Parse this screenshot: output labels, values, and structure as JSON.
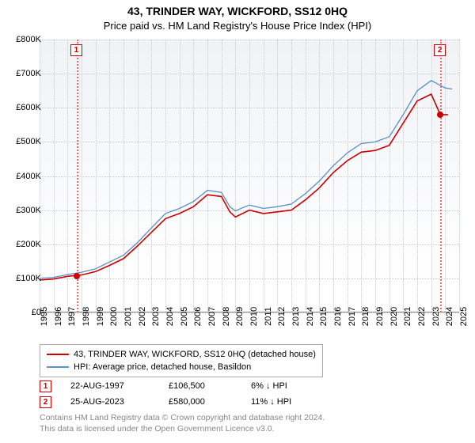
{
  "title": "43, TRINDER WAY, WICKFORD, SS12 0HQ",
  "subtitle": "Price paid vs. HM Land Registry's House Price Index (HPI)",
  "chart": {
    "type": "line",
    "background_top": "#f0f2f6",
    "background_bottom": "#ffffff",
    "grid_color": "#c8c8c8",
    "x_years": [
      1995,
      1996,
      1997,
      1998,
      1999,
      2000,
      2001,
      2002,
      2003,
      2004,
      2005,
      2006,
      2007,
      2008,
      2009,
      2010,
      2011,
      2012,
      2013,
      2014,
      2015,
      2016,
      2017,
      2018,
      2019,
      2020,
      2021,
      2022,
      2023,
      2024,
      2025
    ],
    "y_ticks": [
      0,
      100,
      200,
      300,
      400,
      500,
      600,
      700,
      800
    ],
    "y_unit": "K",
    "y_prefix": "£",
    "ylim": [
      0,
      800
    ],
    "series": [
      {
        "name": "43, TRINDER WAY, WICKFORD, SS12 0HQ (detached house)",
        "color": "#cc0000",
        "width": 1.6,
        "data": [
          [
            1995,
            95
          ],
          [
            1996,
            98
          ],
          [
            1997,
            106
          ],
          [
            1998,
            110
          ],
          [
            1999,
            120
          ],
          [
            2000,
            138
          ],
          [
            2001,
            158
          ],
          [
            2002,
            195
          ],
          [
            2003,
            235
          ],
          [
            2004,
            275
          ],
          [
            2005,
            290
          ],
          [
            2006,
            310
          ],
          [
            2007,
            345
          ],
          [
            2008,
            340
          ],
          [
            2008.6,
            295
          ],
          [
            2009,
            280
          ],
          [
            2010,
            300
          ],
          [
            2011,
            290
          ],
          [
            2012,
            295
          ],
          [
            2013,
            300
          ],
          [
            2014,
            330
          ],
          [
            2015,
            365
          ],
          [
            2016,
            410
          ],
          [
            2017,
            445
          ],
          [
            2018,
            470
          ],
          [
            2019,
            475
          ],
          [
            2020,
            490
          ],
          [
            2021,
            555
          ],
          [
            2022,
            620
          ],
          [
            2023,
            640
          ],
          [
            2023.65,
            580
          ],
          [
            2024.2,
            580
          ]
        ]
      },
      {
        "name": "HPI: Average price, detached house, Basildon",
        "color": "#5b8fc7",
        "width": 1.3,
        "data": [
          [
            1995,
            100
          ],
          [
            1996,
            103
          ],
          [
            1997,
            111
          ],
          [
            1998,
            118
          ],
          [
            1999,
            128
          ],
          [
            2000,
            148
          ],
          [
            2001,
            168
          ],
          [
            2002,
            205
          ],
          [
            2003,
            248
          ],
          [
            2004,
            290
          ],
          [
            2005,
            305
          ],
          [
            2006,
            325
          ],
          [
            2007,
            358
          ],
          [
            2008,
            352
          ],
          [
            2008.6,
            310
          ],
          [
            2009,
            298
          ],
          [
            2010,
            315
          ],
          [
            2011,
            305
          ],
          [
            2012,
            310
          ],
          [
            2013,
            318
          ],
          [
            2014,
            348
          ],
          [
            2015,
            385
          ],
          [
            2016,
            430
          ],
          [
            2017,
            468
          ],
          [
            2018,
            495
          ],
          [
            2019,
            500
          ],
          [
            2020,
            515
          ],
          [
            2021,
            580
          ],
          [
            2022,
            650
          ],
          [
            2023,
            680
          ],
          [
            2024,
            658
          ],
          [
            2024.5,
            655
          ]
        ]
      }
    ],
    "markers": [
      {
        "n": 1,
        "year": 1997.65,
        "point_value": 106.5
      },
      {
        "n": 2,
        "year": 2023.65,
        "point_value": 580
      }
    ]
  },
  "legend": {
    "rows": [
      {
        "color": "#cc0000",
        "label": "43, TRINDER WAY, WICKFORD, SS12 0HQ (detached house)"
      },
      {
        "color": "#5b8fc7",
        "label": "HPI: Average price, detached house, Basildon"
      }
    ]
  },
  "datapoints": [
    {
      "n": "1",
      "date": "22-AUG-1997",
      "price": "£106,500",
      "delta": "6% ↓ HPI"
    },
    {
      "n": "2",
      "date": "25-AUG-2023",
      "price": "£580,000",
      "delta": "11% ↓ HPI"
    }
  ],
  "footer_lines": [
    "Contains HM Land Registry data © Crown copyright and database right 2024.",
    "This data is licensed under the Open Government Licence v3.0."
  ]
}
